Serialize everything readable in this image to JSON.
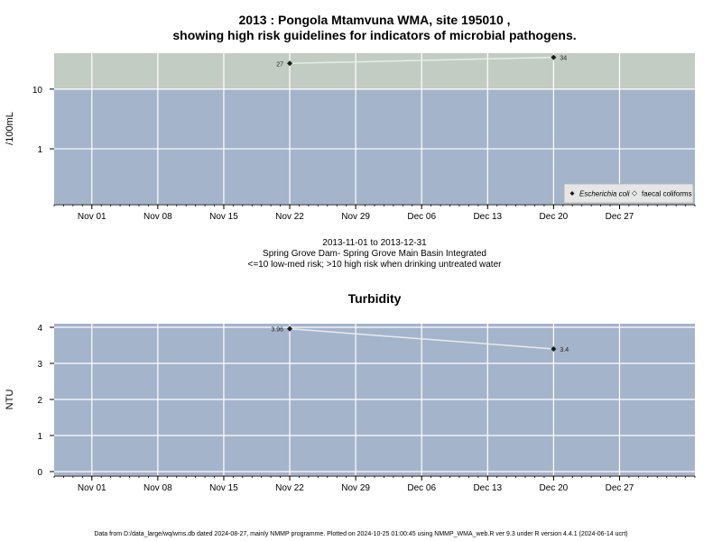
{
  "figure": {
    "footer": "Data from D:/data_large/wq/wms.db dated 2024-08-27, mainly NMMP programme. Plotted on 2024-10-25 01:00:45 using NMMP_WMA_web.R ver 9.3 under R version 4.4.1 (2024-06-14 ucrt)"
  },
  "chart_data": [
    {
      "type": "line",
      "title_line1": "2013 : Pongola Mtamvuna WMA, site 195010 ,",
      "title_line2": "showing high risk guidelines for indicators of microbial pathogens.",
      "ylabel": "/100mL",
      "y_scale": "log",
      "y_ticks": [
        1,
        10
      ],
      "y_tick_labels": [
        "1",
        "10"
      ],
      "ylim": [
        0.12,
        40
      ],
      "xlim": [
        "2013-10-28",
        "2014-01-04"
      ],
      "x_ticks": [
        "2013-11-01",
        "2013-11-08",
        "2013-11-15",
        "2013-11-22",
        "2013-11-29",
        "2013-12-06",
        "2013-12-13",
        "2013-12-20",
        "2013-12-27"
      ],
      "x_tick_labels": [
        "Nov 01",
        "Nov 08",
        "Nov 15",
        "Nov 22",
        "Nov 29",
        "Dec 06",
        "Dec 13",
        "Dec 20",
        "Dec 27"
      ],
      "grid": true,
      "risk_threshold": 10,
      "zone_colors": {
        "high": "#c3ccc3",
        "low": "#a4b4cb"
      },
      "series": [
        {
          "name": "Escherichia coli",
          "points": [
            {
              "x": "2013-11-22",
              "y": 27,
              "label": "27"
            },
            {
              "x": "2013-12-20",
              "y": 34,
              "label": "34"
            }
          ]
        }
      ],
      "legend": {
        "position": "bottom-right",
        "entries": [
          "Escherichia coli",
          "faecal coliforms"
        ]
      },
      "caption_lines": [
        "2013-11-01 to 2013-12-31",
        "Spring Grove Dam- Spring Grove Main Basin Integrated",
        "<=10 low-med risk; >10 high risk when drinking untreated water"
      ]
    },
    {
      "type": "line",
      "title": "Turbidity",
      "ylabel": "NTU",
      "y_ticks": [
        0,
        1,
        2,
        3,
        4
      ],
      "y_tick_labels": [
        "0",
        "1",
        "2",
        "3",
        "4"
      ],
      "ylim": [
        -0.1,
        4.1
      ],
      "xlim": [
        "2013-10-28",
        "2014-01-04"
      ],
      "x_ticks": [
        "2013-11-01",
        "2013-11-08",
        "2013-11-15",
        "2013-11-22",
        "2013-11-29",
        "2013-12-06",
        "2013-12-13",
        "2013-12-20",
        "2013-12-27"
      ],
      "x_tick_labels": [
        "Nov 01",
        "Nov 08",
        "Nov 15",
        "Nov 22",
        "Nov 29",
        "Dec 06",
        "Dec 13",
        "Dec 20",
        "Dec 27"
      ],
      "grid": true,
      "background_color": "#a4b4cb",
      "series": [
        {
          "points": [
            {
              "x": "2013-11-22",
              "y": 3.96,
              "label": "3.96"
            },
            {
              "x": "2013-12-20",
              "y": 3.4,
              "label": "3.4"
            }
          ]
        }
      ]
    }
  ]
}
